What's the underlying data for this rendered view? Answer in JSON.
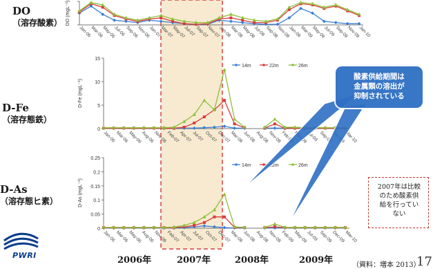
{
  "panel_labels": [
    {
      "line1": "DO",
      "line2": "（溶存酸素）"
    },
    {
      "line1": "D-Fe",
      "line2": "（溶存態鉄）"
    },
    {
      "line1": "D-As",
      "line2": "（溶存態ヒ素）"
    }
  ],
  "callout": {
    "lines": [
      "酸素供給期間は",
      "金属類の溶出が",
      "抑制されている"
    ]
  },
  "note": {
    "lines": [
      "2007年は比較",
      "のため酸素供",
      "給を行ってい",
      "ない"
    ]
  },
  "year_labels": [
    "2006年",
    "2007年",
    "2008年",
    "2009年"
  ],
  "source": "（資料：増本 2013）",
  "page_number": "17",
  "logo": {
    "text": "PWRI"
  },
  "colors": {
    "s14": "#3a7fd5",
    "s22": "#d93a3a",
    "s26": "#8fbf3a",
    "highlight_fill": "#f7ead0",
    "highlight_border": "#d94040",
    "callout_fill": "#2e6fc4"
  },
  "chart_data": [
    {
      "id": "do",
      "type": "line",
      "title": "",
      "xlabel": "",
      "ylabel": "DO (mgL⁻¹)",
      "ylim": [
        0,
        20
      ],
      "yticks": [
        "",
        "",
        ""
      ],
      "categories": [
        "Jan-06",
        "Mar-06",
        "May-06",
        "Jul-06",
        "Sep-06",
        "Nov-06",
        "Jan-07",
        "Mar-07",
        "May-07",
        "Jul-07",
        "Sep-07",
        "Nov-07",
        "Jan-08",
        "Mar-08",
        "May-08",
        "Jul-08",
        "Sep-08",
        "Nov-08",
        "Jan-09",
        "Mar-09",
        "May-09",
        "Jul-09",
        "Sep-09",
        "Nov-09",
        "Jan-10"
      ],
      "xticks": [
        "Jan-06",
        "Mar-06",
        "May-06",
        "Jul-06",
        "Sep-06",
        "Nov-06",
        "Jan-07",
        "Mar-07",
        "May-07",
        "Jul-07",
        "Sep-07",
        "Nov-07",
        "Jan-08",
        "Mar-08",
        "May-08",
        "Jul-08",
        "Sep-08",
        "Nov-08",
        "Jan-09",
        "Mar-09",
        "May-09",
        "Jul-09",
        "Sep-09",
        "Nov-09",
        "Jan-10"
      ],
      "legend": [
        "",
        "",
        ""
      ],
      "series": [
        {
          "name": "",
          "values": [
            10,
            16,
            9,
            4,
            3,
            2,
            4,
            3,
            2,
            1,
            0.5,
            0.5,
            4,
            3,
            2,
            1,
            0.5,
            0.5,
            6,
            14,
            10,
            3,
            2,
            1,
            1
          ]
        },
        {
          "name": "",
          "values": [
            11,
            18,
            15,
            8,
            5,
            3,
            5,
            6,
            3,
            1,
            0.5,
            1,
            5,
            6,
            4,
            2,
            2,
            4,
            13,
            18,
            17,
            14,
            16,
            12,
            8
          ]
        },
        {
          "name": "",
          "values": [
            12,
            19,
            17,
            9,
            6,
            4,
            6,
            8,
            5,
            3,
            2,
            2,
            6,
            9,
            6,
            4,
            3,
            5,
            15,
            19,
            18,
            15,
            17,
            13,
            9
          ]
        }
      ]
    },
    {
      "id": "fe",
      "type": "line",
      "title": "",
      "xlabel": "",
      "ylabel": "D-Fe (mgL⁻¹)",
      "ylim": [
        0,
        15
      ],
      "yticks": [
        "0",
        "5",
        "10",
        "15"
      ],
      "categories": [
        "Jan-06",
        "Mar-06",
        "May-06",
        "Jul-06",
        "Sep-06",
        "Nov-06",
        "Jan-07",
        "Mar-07",
        "May-07",
        "Jul-07",
        "Sep-07",
        "Nov-07",
        "Jan-08",
        "Mar-08",
        "May-08",
        "Jul-08",
        "Sep-08",
        "Nov-08",
        "Jan-09",
        "Mar-09",
        "May-09",
        "Jul-09",
        "Sep-09",
        "Nov-09",
        "Jan-10"
      ],
      "xticks": [
        "Jan-06",
        "Mar-06",
        "May-06",
        "Aug-06",
        "Nov-06",
        "Feb-07",
        "Apr-07",
        "Jul-07",
        "Oct-07",
        "Dec-07",
        "Mar-08",
        "Jun-08",
        "Aug-08",
        "Nov-08",
        "Feb-09",
        "May-09",
        "Jul-09",
        "Sep-09",
        "Dec-09",
        "Mar-10"
      ],
      "legend": [
        "14m",
        "22m",
        "26m"
      ],
      "series": [
        {
          "name": "14m",
          "values": [
            0.1,
            0.1,
            0.1,
            0.1,
            0.1,
            0.1,
            0.1,
            0.1,
            0.1,
            0.1,
            0.2,
            0.3,
            0.5,
            0.1,
            0.1,
            null,
            0.1,
            0.1,
            0.1,
            0.1,
            0.1,
            0.1,
            0.1,
            0.1,
            0.1
          ]
        },
        {
          "name": "22m",
          "values": [
            0.1,
            0.1,
            0.1,
            0.1,
            0.1,
            0.1,
            0.1,
            0.1,
            0.3,
            1.2,
            2.5,
            4,
            6,
            1,
            0.2,
            null,
            0.1,
            1,
            0.1,
            0.1,
            0.1,
            0.1,
            0.1,
            0.1,
            0.1
          ]
        },
        {
          "name": "26m",
          "values": [
            0.2,
            0.2,
            0.2,
            0.2,
            0.2,
            0.2,
            0.2,
            0.3,
            1.5,
            3,
            6,
            4,
            12.5,
            2,
            0.3,
            null,
            0.3,
            2,
            0.3,
            0.3,
            0.2,
            0.2,
            0.2,
            0.2,
            0.2
          ]
        }
      ]
    },
    {
      "id": "as",
      "type": "line",
      "title": "",
      "xlabel": "",
      "ylabel": "D-As (mgL⁻¹)",
      "ylim": [
        0,
        0.25
      ],
      "yticks": [
        "0",
        "0.05",
        "0.1",
        "0.15",
        "0.2",
        "0.25"
      ],
      "categories": [
        "Jan-06",
        "Mar-06",
        "May-06",
        "Jul-06",
        "Sep-06",
        "Nov-06",
        "Jan-07",
        "Mar-07",
        "May-07",
        "Jul-07",
        "Sep-07",
        "Nov-07",
        "Jan-08",
        "Mar-08",
        "May-08",
        "Jul-08",
        "Sep-08",
        "Nov-08",
        "Jan-09",
        "Mar-09",
        "May-09",
        "Jul-09",
        "Sep-09",
        "Nov-09",
        "Jan-10"
      ],
      "xticks": [
        "Jan-06",
        "Mar-06",
        "May-06",
        "Aug-06",
        "Nov-06",
        "Feb-07",
        "Apr-07",
        "Jul-07",
        "Oct-07",
        "Dec-07",
        "Mar-08",
        "Jun-08",
        "Aug-08",
        "Nov-08",
        "Feb-09",
        "May-09",
        "Jul-09",
        "Sep-09",
        "Dec-09",
        "Mar-10"
      ],
      "legend": [
        "14m",
        "22m",
        "26m"
      ],
      "series": [
        {
          "name": "14m",
          "values": [
            0.001,
            0.001,
            0.001,
            0.001,
            0.001,
            0.001,
            0.001,
            0.001,
            0.002,
            0.005,
            0.008,
            0.005,
            0.002,
            0.001,
            0.001,
            null,
            0.001,
            0.001,
            0.001,
            0.001,
            0.001,
            0.001,
            0.001,
            0.001,
            0.001
          ]
        },
        {
          "name": "22m",
          "values": [
            0.002,
            0.002,
            0.002,
            0.002,
            0.002,
            0.002,
            0.002,
            0.002,
            0.005,
            0.01,
            0.02,
            0.04,
            0.04,
            0.003,
            0.002,
            null,
            0.002,
            0.005,
            0.002,
            0.002,
            0.002,
            0.002,
            0.002,
            0.002,
            0.002
          ]
        },
        {
          "name": "26m",
          "values": [
            0.003,
            0.003,
            0.003,
            0.003,
            0.003,
            0.003,
            0.003,
            0.004,
            0.01,
            0.02,
            0.04,
            0.065,
            0.12,
            0.005,
            0.003,
            null,
            0.003,
            0.015,
            0.003,
            0.003,
            0.003,
            0.003,
            0.003,
            0.003,
            0.003
          ]
        }
      ]
    }
  ]
}
